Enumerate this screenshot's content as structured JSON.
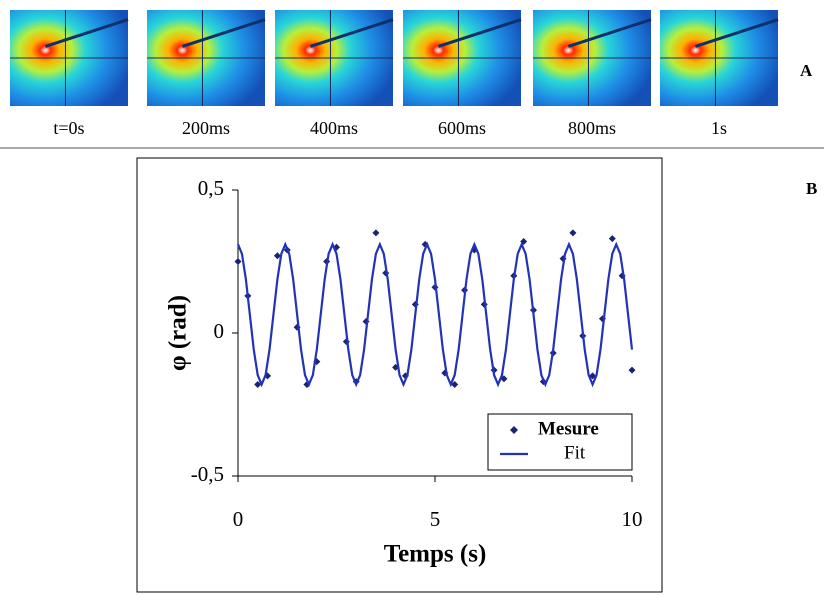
{
  "panel_a": {
    "label": "A",
    "captions": [
      "t=0s",
      "200ms",
      "400ms",
      "600ms",
      "800ms",
      "1s"
    ]
  },
  "panel_b": {
    "label": "B"
  },
  "chart_data": {
    "type": "scatter",
    "xlabel": "Temps (s)",
    "ylabel": "φ (rad)",
    "xlim": [
      0,
      10
    ],
    "xticks": [
      0,
      5,
      10
    ],
    "ylim": [
      -0.5,
      0.5
    ],
    "yticks": [
      {
        "value": 0.5,
        "label": "0,5"
      },
      0,
      {
        "value": -0.5,
        "label": "-0,5"
      }
    ],
    "grid": false,
    "legend": "lower right",
    "series": [
      {
        "name": "Mesure",
        "style": "markers",
        "color": "#1b2470",
        "x": [
          0,
          0.25,
          0.5,
          0.75,
          1,
          1.25,
          1.5,
          1.75,
          2,
          2.25,
          2.5,
          2.75,
          3,
          3.25,
          3.5,
          3.75,
          4,
          4.25,
          4.5,
          4.75,
          5,
          5.25,
          5.5,
          5.75,
          6,
          6.25,
          6.5,
          6.75,
          7,
          7.25,
          7.5,
          7.75,
          8,
          8.25,
          8.5,
          8.75,
          9,
          9.25,
          9.5,
          9.75,
          10
        ],
        "values": [
          0.25,
          0.13,
          -0.18,
          -0.15,
          0.27,
          0.29,
          0.02,
          -0.18,
          -0.1,
          0.25,
          0.3,
          -0.03,
          -0.17,
          0.04,
          0.35,
          0.21,
          -0.12,
          -0.15,
          0.1,
          0.31,
          0.16,
          -0.14,
          -0.18,
          0.15,
          0.29,
          0.1,
          -0.13,
          -0.16,
          0.2,
          0.32,
          0.08,
          -0.17,
          -0.07,
          0.26,
          0.35,
          -0.01,
          -0.15,
          0.05,
          0.33,
          0.2,
          -0.13
        ]
      },
      {
        "name": "Fit",
        "style": "line",
        "color": "#2233b8",
        "x": [
          0,
          0.1,
          0.2,
          0.3,
          0.4,
          0.5,
          0.6,
          0.7,
          0.8,
          0.9,
          1,
          1.1,
          1.2,
          1.3,
          1.4,
          1.5,
          1.6,
          1.7,
          1.8,
          1.9,
          2,
          2.1,
          2.2,
          2.3,
          2.4,
          2.5,
          2.6,
          2.7,
          2.8,
          2.9,
          3,
          3.1,
          3.2,
          3.3,
          3.4,
          3.5,
          3.6,
          3.7,
          3.8,
          3.9,
          4,
          4.1,
          4.2,
          4.3,
          4.4,
          4.5,
          4.6,
          4.7,
          4.8,
          4.9,
          5,
          5.1,
          5.2,
          5.3,
          5.4,
          5.5,
          5.6,
          5.7,
          5.8,
          5.9,
          6,
          6.1,
          6.2,
          6.3,
          6.4,
          6.5,
          6.6,
          6.7,
          6.8,
          6.9,
          7,
          7.1,
          7.2,
          7.3,
          7.4,
          7.5,
          7.6,
          7.7,
          7.8,
          7.9,
          8,
          8.1,
          8.2,
          8.3,
          8.4,
          8.5,
          8.6,
          8.7,
          8.8,
          8.9,
          9,
          9.1,
          9.2,
          9.3,
          9.4,
          9.5,
          9.6,
          9.7,
          9.8,
          9.9,
          10
        ],
        "values": [
          0.31,
          0.277,
          0.188,
          0.065,
          -0.058,
          -0.147,
          -0.18,
          -0.147,
          -0.058,
          0.065,
          0.188,
          0.277,
          0.31,
          0.277,
          0.188,
          0.065,
          -0.058,
          -0.147,
          -0.18,
          -0.147,
          -0.058,
          0.065,
          0.188,
          0.277,
          0.31,
          0.277,
          0.188,
          0.065,
          -0.058,
          -0.147,
          -0.18,
          -0.147,
          -0.058,
          0.065,
          0.188,
          0.277,
          0.31,
          0.277,
          0.188,
          0.065,
          -0.058,
          -0.147,
          -0.18,
          -0.147,
          -0.058,
          0.065,
          0.188,
          0.277,
          0.31,
          0.277,
          0.188,
          0.065,
          -0.058,
          -0.147,
          -0.18,
          -0.147,
          -0.058,
          0.065,
          0.188,
          0.277,
          0.31,
          0.277,
          0.188,
          0.065,
          -0.058,
          -0.147,
          -0.18,
          -0.147,
          -0.058,
          0.065,
          0.188,
          0.277,
          0.31,
          0.277,
          0.188,
          0.065,
          -0.058,
          -0.147,
          -0.18,
          -0.147,
          -0.058,
          0.065,
          0.188,
          0.277,
          0.31,
          0.277,
          0.188,
          0.065,
          -0.058,
          -0.147,
          -0.18,
          -0.147,
          -0.058,
          0.065,
          0.188,
          0.277,
          0.31,
          0.277,
          0.188,
          0.065,
          -0.058
        ]
      }
    ]
  }
}
